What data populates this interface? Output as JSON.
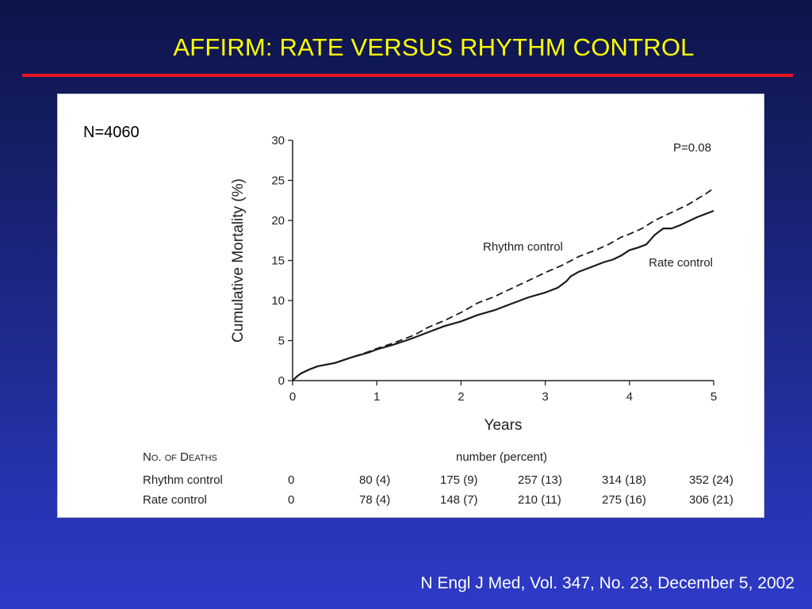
{
  "slide": {
    "title": "AFFIRM: RATE VERSUS RHYTHM CONTROL",
    "n_label": "N=4060",
    "citation": "N Engl J Med, Vol. 347, No. 23, December 5, 2002",
    "title_color": "#ffff00",
    "rule_color": "#e8141e"
  },
  "chart_data": {
    "type": "line",
    "ylabel": "Cumulative Mortality (%)",
    "xlabel": "Years",
    "xlim": [
      0,
      5
    ],
    "ylim": [
      0,
      30
    ],
    "x_ticks": [
      "0",
      "1",
      "2",
      "3",
      "4",
      "5"
    ],
    "y_ticks": [
      "0",
      "5",
      "10",
      "15",
      "20",
      "25",
      "30"
    ],
    "annotation": "P=0.08",
    "grid": false,
    "series": [
      {
        "name": "Rhythm control",
        "style": "dashed",
        "x": [
          0,
          0.05,
          0.1,
          0.2,
          0.3,
          0.5,
          0.7,
          0.9,
          1.0,
          1.2,
          1.4,
          1.5,
          1.6,
          1.8,
          2.0,
          2.2,
          2.4,
          2.6,
          2.8,
          3.0,
          3.2,
          3.4,
          3.6,
          3.75,
          3.9,
          4.0,
          4.15,
          4.3,
          4.5,
          4.7,
          4.9,
          5.0
        ],
        "y": [
          0,
          0.5,
          0.9,
          1.4,
          1.8,
          2.2,
          2.9,
          3.6,
          4.0,
          4.7,
          5.5,
          6.0,
          6.6,
          7.5,
          8.5,
          9.7,
          10.5,
          11.5,
          12.5,
          13.5,
          14.4,
          15.5,
          16.3,
          17.0,
          17.9,
          18.3,
          19.0,
          20.0,
          21.0,
          22.0,
          23.3,
          24.0
        ]
      },
      {
        "name": "Rate control",
        "style": "solid",
        "x": [
          0,
          0.05,
          0.1,
          0.2,
          0.3,
          0.5,
          0.7,
          0.9,
          1.0,
          1.2,
          1.4,
          1.6,
          1.8,
          2.0,
          2.2,
          2.4,
          2.6,
          2.8,
          3.0,
          3.15,
          3.25,
          3.3,
          3.4,
          3.5,
          3.7,
          3.8,
          3.9,
          4.0,
          4.1,
          4.2,
          4.3,
          4.4,
          4.5,
          4.6,
          4.8,
          5.0
        ],
        "y": [
          0,
          0.5,
          0.9,
          1.4,
          1.8,
          2.2,
          2.9,
          3.5,
          3.9,
          4.5,
          5.2,
          6.0,
          6.8,
          7.4,
          8.2,
          8.8,
          9.6,
          10.4,
          11.0,
          11.6,
          12.4,
          13.0,
          13.6,
          14.0,
          14.8,
          15.1,
          15.6,
          16.3,
          16.6,
          17.0,
          18.2,
          19.0,
          19.0,
          19.4,
          20.4,
          21.2
        ]
      }
    ],
    "deaths_table": {
      "header_label": "No. of Deaths",
      "subheader": "number (percent)",
      "rows": [
        {
          "label": "Rhythm control",
          "values": [
            "0",
            "80 (4)",
            "175 (9)",
            "257 (13)",
            "314 (18)",
            "352 (24)"
          ]
        },
        {
          "label": "Rate control",
          "values": [
            "0",
            "78 (4)",
            "148 (7)",
            "210 (11)",
            "275 (16)",
            "306 (21)"
          ]
        }
      ]
    }
  }
}
